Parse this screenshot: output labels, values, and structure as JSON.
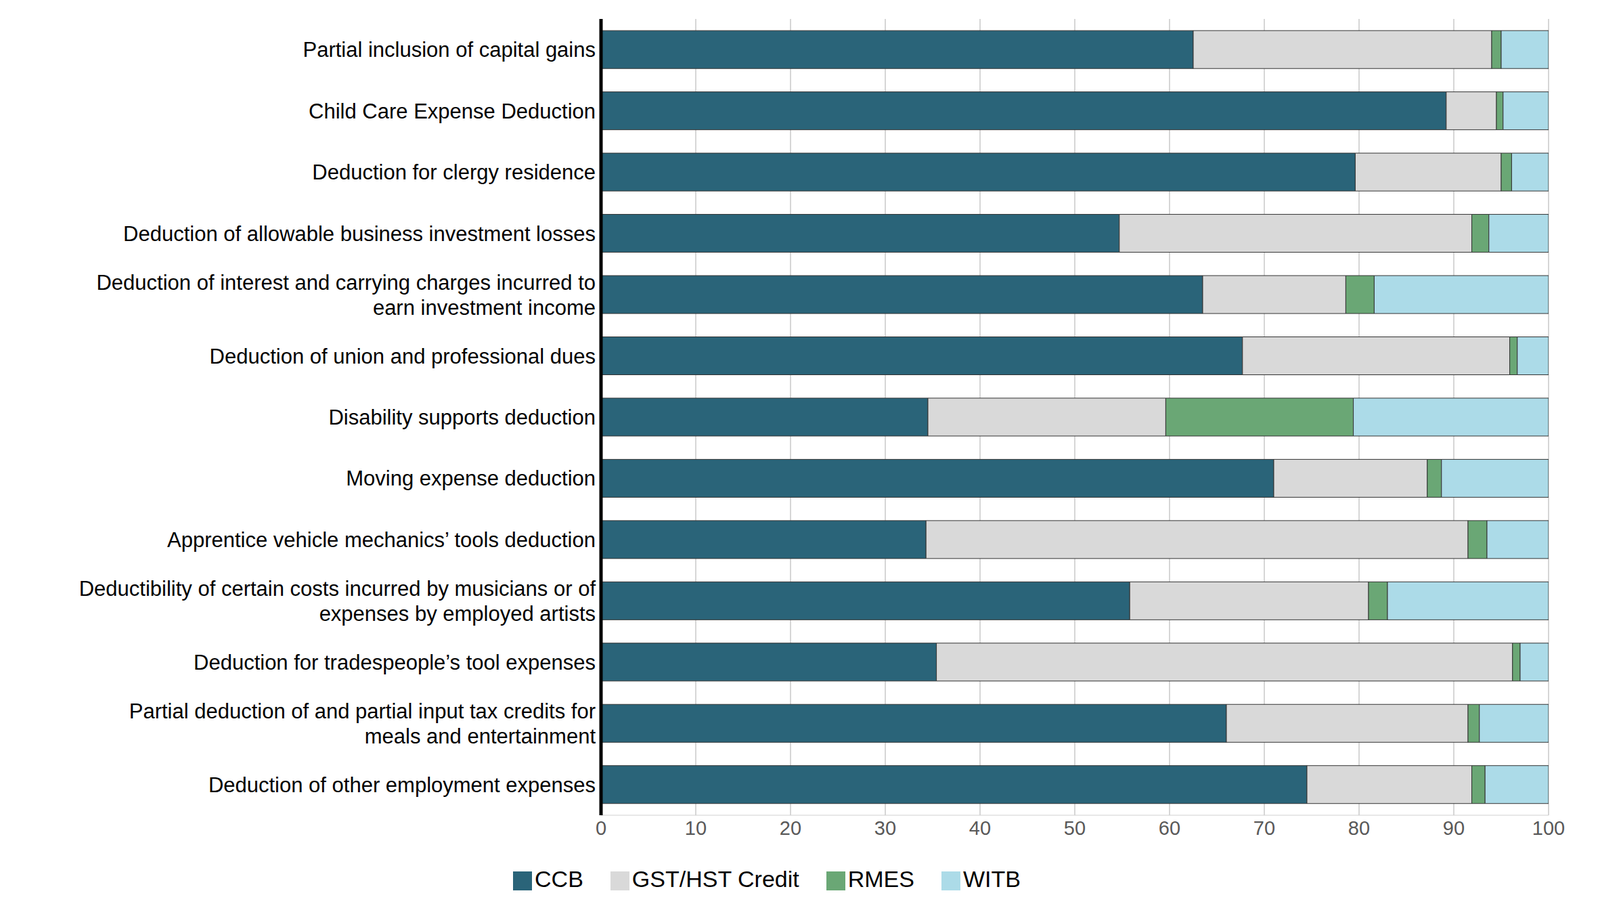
{
  "chart_data": {
    "type": "bar",
    "orientation": "horizontal",
    "stacked": true,
    "grid": true,
    "legend": "bottom",
    "categories": [
      "Partial inclusion of capital gains",
      "Child Care Expense Deduction",
      "Deduction for clergy residence",
      "Deduction of allowable business investment losses",
      "Deduction of interest and carrying charges incurred to earn investment income",
      "Deduction of union and professional dues",
      "Disability supports deduction",
      "Moving expense deduction",
      "Apprentice vehicle mechanics’ tools deduction",
      "Deductibility of certain costs incurred by musicians or of expenses by employed artists",
      "Deduction for tradespeople’s tool expenses",
      "Partial deduction of and partial input tax credits for meals and entertainment",
      "Deduction of other employment expenses"
    ],
    "series": [
      {
        "name": "CCB",
        "color": "#2a6479",
        "values": [
          62.5,
          89.2,
          79.6,
          54.7,
          63.5,
          67.7,
          34.5,
          71.0,
          34.3,
          55.8,
          35.4,
          66.0,
          74.5
        ]
      },
      {
        "name": "GST/HST Credit",
        "color": "#d9d9d9",
        "values": [
          31.5,
          5.3,
          15.4,
          37.2,
          15.1,
          28.2,
          25.1,
          16.2,
          57.2,
          25.2,
          60.8,
          25.5,
          17.4
        ]
      },
      {
        "name": "RMES",
        "color": "#6aa775",
        "values": [
          1.0,
          0.7,
          1.1,
          1.8,
          3.0,
          0.8,
          19.8,
          1.5,
          2.0,
          2.0,
          0.8,
          1.2,
          1.4
        ]
      },
      {
        "name": "WITB",
        "color": "#acdbe8",
        "values": [
          5.0,
          4.8,
          3.9,
          6.3,
          18.4,
          3.3,
          20.6,
          11.3,
          6.5,
          17.0,
          3.0,
          7.3,
          6.7
        ]
      }
    ],
    "xlim": [
      0,
      100
    ],
    "xticks": [
      0,
      10,
      20,
      30,
      40,
      50,
      60,
      70,
      80,
      90,
      100
    ]
  }
}
